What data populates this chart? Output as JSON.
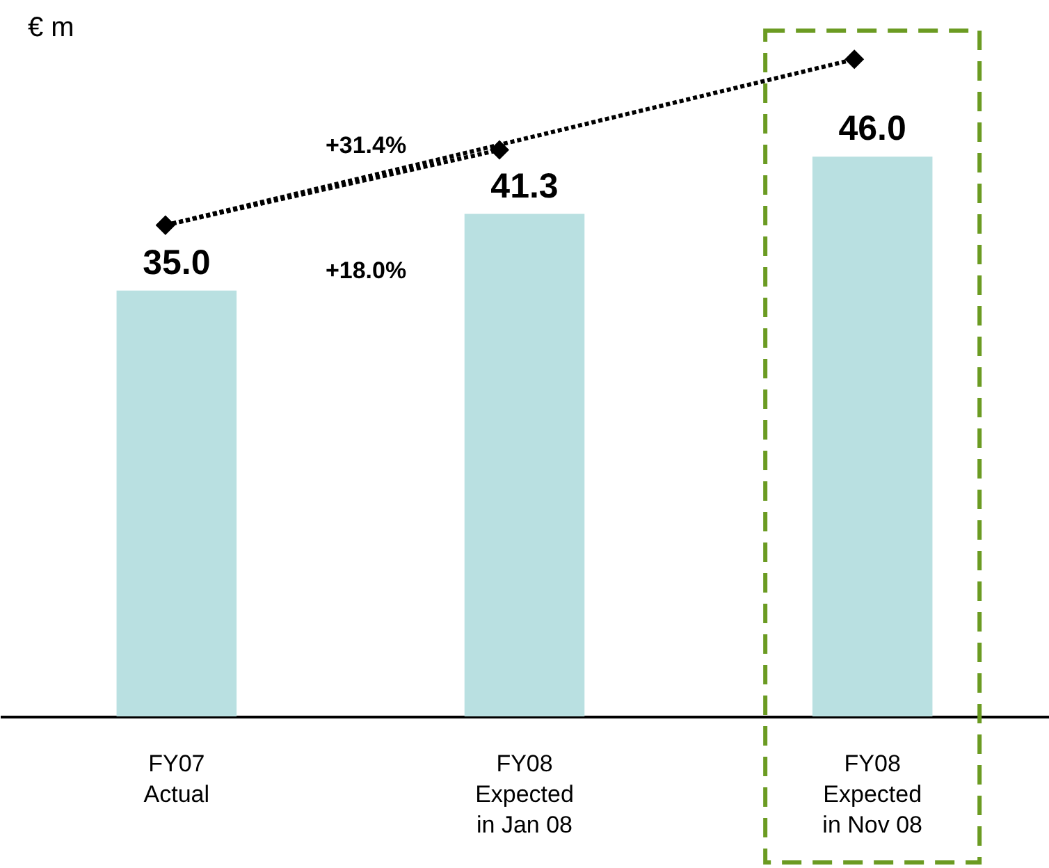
{
  "chart_data": {
    "type": "bar",
    "ylabel": "€ m",
    "categories": [
      "FY07 Actual",
      "FY08 Expected in Jan 08",
      "FY08 Expected in Nov 08"
    ],
    "values": [
      35.0,
      41.3,
      46.0
    ],
    "color": "#b9e0e1",
    "value_labels": [
      "35.0",
      "41.3",
      "46.0"
    ],
    "annotations": [
      "+31.4%",
      "+18.0%"
    ]
  }
}
